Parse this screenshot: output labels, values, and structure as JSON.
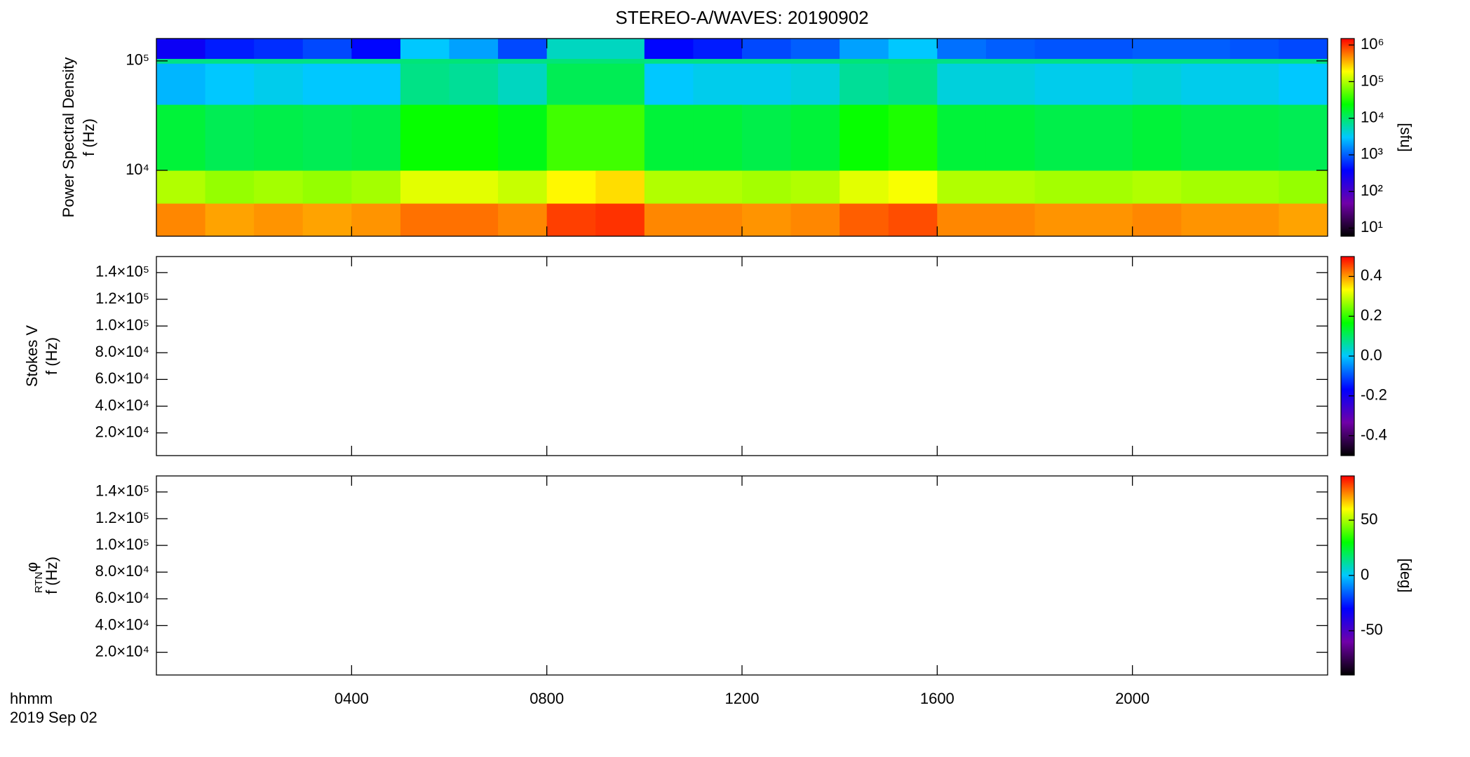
{
  "chart_data": [
    {
      "type": "heatmap",
      "title": "STEREO-A/WAVES: 20190902",
      "ylabel": [
        "Power Spectral Density",
        "f (Hz)"
      ],
      "ylog": true,
      "ylim": [
        2500,
        160000
      ],
      "yticks": [
        {
          "value": 10000,
          "label": "10⁴"
        },
        {
          "value": 100000,
          "label": "10⁵"
        }
      ],
      "xbins": [
        0,
        1,
        2,
        3,
        4,
        5,
        6,
        7,
        8,
        9,
        10,
        11,
        12,
        13,
        14,
        15,
        16,
        17,
        18,
        19,
        20,
        21,
        22,
        23,
        24
      ],
      "ybins": [
        2500,
        5000,
        10000,
        40000,
        95000,
        105000,
        160000
      ],
      "values": [
        [
          500000,
          400000,
          450000,
          400000,
          450000,
          600000,
          600000,
          500000,
          900000,
          1000000,
          500000,
          500000,
          450000,
          500000,
          700000,
          800000,
          500000,
          500000,
          450000,
          450000,
          500000,
          450000,
          450000,
          400000
        ],
        [
          100000,
          80000,
          90000,
          80000,
          90000,
          150000,
          150000,
          120000,
          200000,
          250000,
          100000,
          100000,
          90000,
          100000,
          150000,
          180000,
          100000,
          100000,
          90000,
          90000,
          100000,
          90000,
          90000,
          80000
        ],
        [
          15000,
          12000,
          13000,
          12000,
          13000,
          25000,
          25000,
          20000,
          40000,
          40000,
          15000,
          15000,
          13000,
          15000,
          25000,
          30000,
          15000,
          15000,
          13000,
          13000,
          15000,
          13000,
          13000,
          12000
        ],
        [
          2500,
          3000,
          3500,
          3000,
          3000,
          8000,
          7000,
          5000,
          12000,
          12000,
          3000,
          3500,
          3500,
          4000,
          7000,
          8000,
          4000,
          4000,
          3500,
          3500,
          4000,
          3500,
          3500,
          3000
        ],
        [
          8000,
          8000,
          8000,
          8000,
          8000,
          9000,
          9000,
          8000,
          9000,
          9000,
          8000,
          8000,
          8000,
          8000,
          9000,
          9000,
          8000,
          8000,
          8000,
          8000,
          8000,
          8000,
          8000,
          8000
        ],
        [
          300,
          500,
          600,
          800,
          400,
          3000,
          2000,
          800,
          5000,
          5000,
          400,
          500,
          800,
          1000,
          2000,
          3000,
          1200,
          1000,
          900,
          900,
          1000,
          1000,
          900,
          800
        ]
      ],
      "zlog": true,
      "zlim": [
        6,
        1500000
      ],
      "zticks": [
        {
          "value": 10,
          "label": "10¹"
        },
        {
          "value": 100,
          "label": "10²"
        },
        {
          "value": 1000,
          "label": "10³"
        },
        {
          "value": 10000,
          "label": "10⁴"
        },
        {
          "value": 100000,
          "label": "10⁵"
        },
        {
          "value": 1000000,
          "label": "10⁶"
        }
      ],
      "zlabel": "[sfu]",
      "colormap": [
        "#000000",
        "#7000a8",
        "#0000ff",
        "#00c8ff",
        "#00ff00",
        "#ffff00",
        "#ff0000"
      ]
    },
    {
      "type": "heatmap",
      "ylabel": [
        "Stokes V",
        "f (Hz)"
      ],
      "ylim": [
        3000,
        152000
      ],
      "yticks": [
        {
          "value": 20000,
          "label": "2.0×10⁴"
        },
        {
          "value": 40000,
          "label": "4.0×10⁴"
        },
        {
          "value": 60000,
          "label": "6.0×10⁴"
        },
        {
          "value": 80000,
          "label": "8.0×10⁴"
        },
        {
          "value": 100000,
          "label": "1.0×10⁵"
        },
        {
          "value": 120000,
          "label": "1.2×10⁵"
        },
        {
          "value": 140000,
          "label": "1.4×10⁵"
        }
      ],
      "zlim": [
        -0.5,
        0.5
      ],
      "zticks": [
        -0.4,
        -0.2,
        {
          "value": 0,
          "label": "0.0"
        },
        0.2,
        0.4
      ]
    },
    {
      "type": "heatmap",
      "ylabel": [
        "φ",
        "f (Hz)"
      ],
      "ylabel_sub": "RTN",
      "ylim": [
        3000,
        152000
      ],
      "yticks": [
        {
          "value": 20000,
          "label": "2.0×10⁴"
        },
        {
          "value": 40000,
          "label": "4.0×10⁴"
        },
        {
          "value": 60000,
          "label": "6.0×10⁴"
        },
        {
          "value": 80000,
          "label": "8.0×10⁴"
        },
        {
          "value": 100000,
          "label": "1.0×10⁵"
        },
        {
          "value": 120000,
          "label": "1.2×10⁵"
        },
        {
          "value": 140000,
          "label": "1.4×10⁵"
        }
      ],
      "zlim": [
        -90,
        90
      ],
      "zticks": [
        -50,
        0,
        50
      ],
      "zlabel": "[deg]",
      "xlim": [
        0,
        24
      ],
      "xticks": [
        {
          "value": 4,
          "label": "0400"
        },
        {
          "value": 8,
          "label": "0800"
        },
        {
          "value": 12,
          "label": "1200"
        },
        {
          "value": 16,
          "label": "1600"
        },
        {
          "value": 20,
          "label": "2000"
        }
      ],
      "xlabel": "hhmm",
      "date": "2019 Sep 02"
    }
  ]
}
